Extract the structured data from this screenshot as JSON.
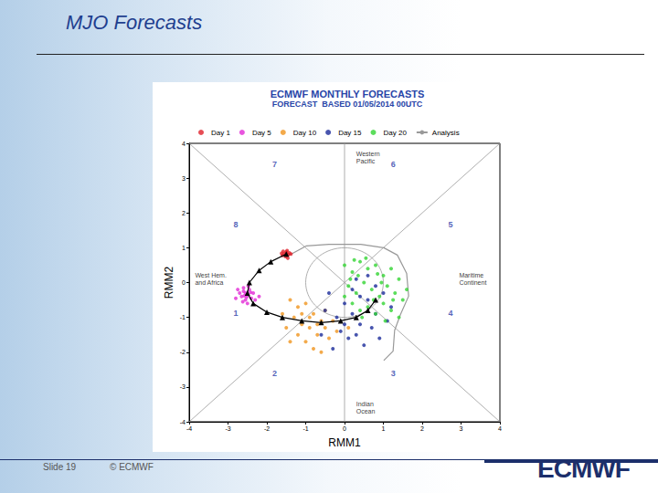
{
  "slide": {
    "title": "MJO Forecasts",
    "slide_number": "Slide 19",
    "copyright": "© ECMWF",
    "logo": "ECMWF"
  },
  "chart_data": {
    "type": "scatter",
    "title": "ECMWF MONTHLY FORECASTS",
    "subtitle": "FORECAST  BASED 01/05/2014 00UTC",
    "x_label": "RMM1",
    "y_label": "RMM2",
    "xlim": [
      -4,
      4
    ],
    "ylim": [
      -4,
      4
    ],
    "xticks": [
      -4,
      -3,
      -2,
      -1,
      0,
      1,
      2,
      3,
      4
    ],
    "yticks": [
      -4,
      -3,
      -2,
      -1,
      0,
      1,
      2,
      3,
      4
    ],
    "grid": false,
    "legend": "top",
    "reference_circle": {
      "center": [
        0,
        0
      ],
      "radius": 1
    },
    "annotations": [
      {
        "text": "7",
        "x": -1.8,
        "y": 3.4
      },
      {
        "text": "6",
        "x": 1.25,
        "y": 3.4
      },
      {
        "text": "8",
        "x": -2.8,
        "y": 1.67
      },
      {
        "text": "5",
        "x": 2.73,
        "y": 1.67
      },
      {
        "text": "1",
        "x": -2.8,
        "y": -0.87
      },
      {
        "text": "4",
        "x": 2.73,
        "y": -0.87
      },
      {
        "text": "2",
        "x": -1.8,
        "y": -2.6
      },
      {
        "text": "3",
        "x": 1.25,
        "y": -2.6
      },
      {
        "text": "Western\nPacific",
        "x": 0.3,
        "y": 3.6
      },
      {
        "text": "West Hem.\nand Africa",
        "x": -3.85,
        "y": 0.1
      },
      {
        "text": "Maritime\nContinent",
        "x": 2.95,
        "y": 0.1
      },
      {
        "text": "Indian\nOcean",
        "x": 0.3,
        "y": -3.6
      }
    ],
    "series": [
      {
        "name": "Day 1",
        "type": "scatter",
        "color": "#e0202a",
        "marker": "circle",
        "values": [
          [
            -1.55,
            0.82
          ],
          [
            -1.5,
            0.88
          ],
          [
            -1.45,
            0.8
          ],
          [
            -1.6,
            0.78
          ],
          [
            -1.48,
            0.92
          ],
          [
            -1.42,
            0.85
          ],
          [
            -1.52,
            0.75
          ],
          [
            -1.58,
            0.9
          ],
          [
            -1.38,
            0.82
          ],
          [
            -1.5,
            0.84
          ],
          [
            -1.46,
            0.7
          ],
          [
            -1.62,
            0.84
          ]
        ]
      },
      {
        "name": "Day 5",
        "type": "scatter",
        "color": "#e22ad6",
        "marker": "circle",
        "values": [
          [
            -2.55,
            -0.3
          ],
          [
            -2.6,
            -0.25
          ],
          [
            -2.5,
            -0.35
          ],
          [
            -2.65,
            -0.4
          ],
          [
            -2.45,
            -0.2
          ],
          [
            -2.7,
            -0.3
          ],
          [
            -2.4,
            -0.45
          ],
          [
            -2.55,
            -0.5
          ],
          [
            -2.6,
            -0.15
          ],
          [
            -2.35,
            -0.3
          ],
          [
            -2.75,
            -0.2
          ],
          [
            -2.5,
            -0.6
          ],
          [
            -2.3,
            -0.5
          ],
          [
            -2.62,
            -0.55
          ],
          [
            -2.48,
            -0.1
          ],
          [
            -2.2,
            -0.4
          ],
          [
            -2.8,
            -0.45
          ],
          [
            -2.58,
            -0.38
          ],
          [
            -2.42,
            -0.28
          ],
          [
            -2.52,
            -0.42
          ]
        ]
      },
      {
        "name": "Day 10",
        "type": "scatter",
        "color": "#f0951e",
        "marker": "circle",
        "values": [
          [
            -1.4,
            -0.5
          ],
          [
            -1.2,
            -0.7
          ],
          [
            -1.0,
            -0.6
          ],
          [
            -0.8,
            -0.9
          ],
          [
            -0.6,
            -1.1
          ],
          [
            -1.3,
            -1.0
          ],
          [
            -1.1,
            -1.2
          ],
          [
            -0.9,
            -1.3
          ],
          [
            -0.7,
            -1.5
          ],
          [
            -0.5,
            -1.3
          ],
          [
            -1.5,
            -1.3
          ],
          [
            -1.2,
            -1.5
          ],
          [
            -1.0,
            -1.7
          ],
          [
            -0.8,
            -1.9
          ],
          [
            -0.4,
            -1.6
          ],
          [
            -0.3,
            -1.1
          ],
          [
            -1.6,
            -0.9
          ],
          [
            -0.6,
            -2.0
          ],
          [
            -0.9,
            -1.0
          ],
          [
            -0.2,
            -1.4
          ],
          [
            -1.4,
            -1.7
          ],
          [
            -0.5,
            -0.8
          ],
          [
            -1.1,
            -0.9
          ],
          [
            -0.7,
            -1.2
          ],
          [
            0.1,
            -1.3
          ]
        ]
      },
      {
        "name": "Day 15",
        "type": "scatter",
        "color": "#1a2a9a",
        "marker": "circle",
        "values": [
          [
            -0.5,
            -0.8
          ],
          [
            -0.2,
            -1.0
          ],
          [
            0.0,
            -0.6
          ],
          [
            0.2,
            -0.9
          ],
          [
            0.4,
            -1.2
          ],
          [
            0.6,
            -0.5
          ],
          [
            0.8,
            -0.9
          ],
          [
            1.0,
            -0.3
          ],
          [
            1.2,
            -0.7
          ],
          [
            0.3,
            0.1
          ],
          [
            -0.1,
            -1.4
          ],
          [
            0.1,
            -1.6
          ],
          [
            0.5,
            -1.8
          ],
          [
            0.7,
            -1.3
          ],
          [
            -0.3,
            -1.9
          ],
          [
            0.9,
            -1.6
          ],
          [
            0.4,
            -0.4
          ],
          [
            -0.6,
            -1.5
          ],
          [
            1.1,
            -1.1
          ],
          [
            0.2,
            -0.2
          ],
          [
            0.6,
            0.2
          ],
          [
            -0.4,
            -0.3
          ],
          [
            0.0,
            -1.2
          ],
          [
            0.8,
            -0.1
          ],
          [
            0.3,
            -1.5
          ]
        ]
      },
      {
        "name": "Day 20",
        "type": "scatter",
        "color": "#33d433",
        "marker": "circle",
        "values": [
          [
            0.0,
            0.5
          ],
          [
            0.2,
            0.3
          ],
          [
            0.4,
            0.6
          ],
          [
            0.6,
            0.4
          ],
          [
            0.8,
            0.5
          ],
          [
            1.0,
            0.2
          ],
          [
            1.2,
            0.4
          ],
          [
            1.4,
            0.1
          ],
          [
            0.1,
            -0.1
          ],
          [
            0.3,
            -0.3
          ],
          [
            0.5,
            0.0
          ],
          [
            0.7,
            -0.2
          ],
          [
            0.9,
            -0.4
          ],
          [
            1.1,
            -0.1
          ],
          [
            1.3,
            -0.3
          ],
          [
            1.5,
            -0.5
          ],
          [
            0.2,
            -0.6
          ],
          [
            0.4,
            -0.8
          ],
          [
            0.6,
            -0.7
          ],
          [
            0.8,
            -0.9
          ],
          [
            1.0,
            -0.6
          ],
          [
            1.2,
            -0.8
          ],
          [
            1.4,
            -1.0
          ],
          [
            0.0,
            -0.4
          ],
          [
            0.15,
            0.1
          ],
          [
            0.55,
            0.7
          ],
          [
            0.95,
            0.0
          ],
          [
            1.25,
            -0.5
          ],
          [
            0.35,
            0.2
          ],
          [
            0.75,
            -0.5
          ],
          [
            1.6,
            -0.2
          ],
          [
            0.45,
            -1.0
          ],
          [
            1.05,
            -1.1
          ],
          [
            0.25,
            0.65
          ],
          [
            0.85,
            0.25
          ]
        ]
      },
      {
        "name": "Analysis",
        "type": "line",
        "color": "#999999",
        "line_style": "solid",
        "values": [
          [
            -1.5,
            0.74
          ],
          [
            -0.99,
            1.05
          ],
          [
            -0.4,
            1.1
          ],
          [
            0.42,
            1.1
          ],
          [
            1.01,
            1.0
          ],
          [
            1.36,
            0.79
          ],
          [
            1.6,
            0.26
          ],
          [
            1.65,
            -0.39
          ],
          [
            1.44,
            -0.92
          ],
          [
            1.29,
            -1.37
          ],
          [
            1.25,
            -1.97
          ],
          [
            1.01,
            -2.24
          ]
        ]
      },
      {
        "type": "line",
        "color": "#000000",
        "marker": "triangle",
        "line_style": "solid",
        "values": [
          [
            -1.5,
            0.82
          ],
          [
            -1.9,
            0.6
          ],
          [
            -2.2,
            0.35
          ],
          [
            -2.45,
            0.0
          ],
          [
            -2.5,
            -0.3
          ],
          [
            -2.35,
            -0.6
          ],
          [
            -2.0,
            -0.85
          ],
          [
            -1.6,
            -1.0
          ],
          [
            -1.1,
            -1.1
          ],
          [
            -0.6,
            -1.15
          ],
          [
            -0.1,
            -1.1
          ],
          [
            0.3,
            -1.0
          ],
          [
            0.6,
            -0.8
          ],
          [
            0.8,
            -0.5
          ]
        ]
      }
    ]
  }
}
